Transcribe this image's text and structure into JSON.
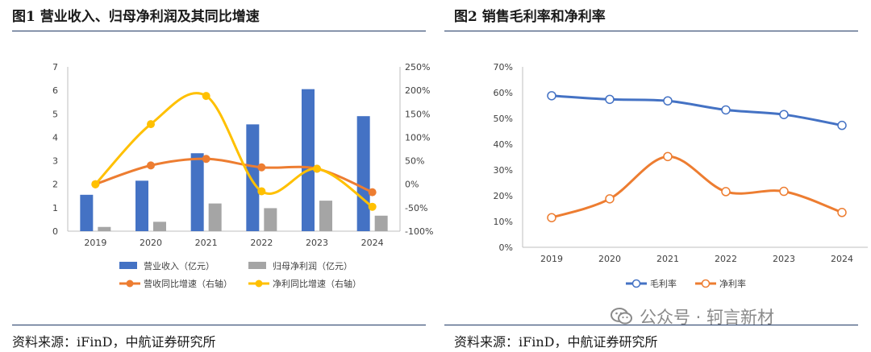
{
  "figure1": {
    "title": "图1  营业收入、归母净利润及其同比增速",
    "source": "资料来源：iFinD，中航证券研究所"
  },
  "figure2": {
    "title": "图2  销售毛利率和净利率",
    "source": "资料来源：iFinD，中航证券研究所"
  },
  "watermark": {
    "text": "公众号 · 轲言新材"
  },
  "colors": {
    "blue": "#4472c4",
    "gray": "#a5a5a5",
    "orange": "#ed7d31",
    "yellow": "#ffc000",
    "rule": "#1f3864"
  },
  "chart_data": [
    {
      "type": "bar",
      "categories": [
        "2019",
        "2020",
        "2021",
        "2022",
        "2023",
        "2024"
      ],
      "series": [
        {
          "name": "营业收入（亿元）",
          "kind": "bar",
          "axis": "left",
          "color": "#4472c4",
          "values": [
            1.55,
            2.15,
            3.32,
            4.55,
            6.05,
            4.9
          ]
        },
        {
          "name": "归母净利润（亿元）",
          "kind": "bar",
          "axis": "left",
          "color": "#a5a5a5",
          "values": [
            0.18,
            0.4,
            1.18,
            0.98,
            1.3,
            0.66
          ]
        },
        {
          "name": "营收同比增速（右轴）",
          "kind": "line",
          "axis": "right",
          "color": "#ed7d31",
          "values": [
            0,
            40,
            54,
            36,
            33,
            -17
          ]
        },
        {
          "name": "净利同比增速（右轴）",
          "kind": "line",
          "axis": "right",
          "color": "#ffc000",
          "values": [
            0,
            128,
            188,
            -15,
            33,
            -48
          ]
        }
      ],
      "ylim": [
        0,
        7
      ],
      "yticks": [
        "0",
        "1",
        "2",
        "3",
        "4",
        "5",
        "6",
        "7"
      ],
      "y2lim": [
        -100,
        250
      ],
      "y2ticks": [
        "-100%",
        "-50%",
        "0%",
        "50%",
        "100%",
        "150%",
        "200%",
        "250%"
      ],
      "legend": "bottom"
    },
    {
      "type": "line",
      "categories": [
        "2019",
        "2020",
        "2021",
        "2022",
        "2023",
        "2024"
      ],
      "series": [
        {
          "name": "毛利率",
          "color": "#4472c4",
          "values": [
            58.8,
            57.4,
            56.8,
            53.3,
            51.5,
            47.3
          ]
        },
        {
          "name": "净利率",
          "color": "#ed7d31",
          "values": [
            11.5,
            18.8,
            35.2,
            21.6,
            21.7,
            13.5
          ]
        }
      ],
      "ylim": [
        0,
        70
      ],
      "yticks": [
        "0%",
        "10%",
        "20%",
        "30%",
        "40%",
        "50%",
        "60%",
        "70%"
      ],
      "legend": "bottom"
    }
  ]
}
